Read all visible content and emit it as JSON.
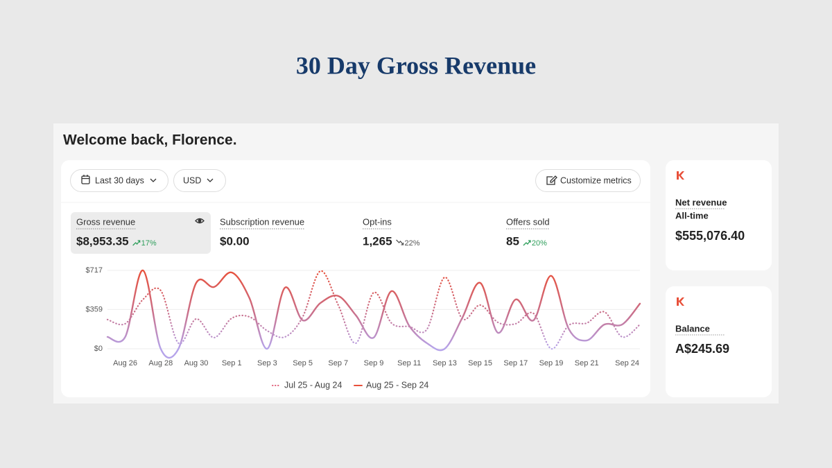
{
  "header": {
    "title": "30 Day Gross Revenue"
  },
  "greeting": "Welcome back, Florence.",
  "controls": {
    "date_range": "Last 30 days",
    "currency": "USD",
    "customize": "Customize metrics"
  },
  "metrics": [
    {
      "label": "Gross revenue",
      "value": "$8,953.35",
      "change": "17%",
      "trend": "up"
    },
    {
      "label": "Subscription revenue",
      "value": "$0.00"
    },
    {
      "label": "Opt-ins",
      "value": "1,265",
      "change": "22%",
      "trend": "down"
    },
    {
      "label": "Offers sold",
      "value": "85",
      "change": "20%",
      "trend": "up"
    }
  ],
  "chart_data": {
    "type": "line",
    "categories": [
      null,
      "Aug 26",
      null,
      "Aug 28",
      null,
      "Aug 30",
      null,
      "Sep 1",
      null,
      "Sep 3",
      null,
      "Sep 5",
      null,
      "Sep 7",
      null,
      "Sep 9",
      null,
      "Sep 11",
      null,
      "Sep 13",
      null,
      "Sep 15",
      null,
      "Sep 17",
      null,
      "Sep 19",
      null,
      "Sep 21",
      null,
      null,
      "Sep 24"
    ],
    "series": [
      {
        "name": "Jul 25 - Aug 24",
        "color": "#e0607a",
        "line_style": "dotted",
        "values": [
          267,
          229,
          451,
          533,
          51,
          273,
          102,
          279,
          292,
          165,
          108,
          292,
          711,
          400,
          51,
          514,
          235,
          203,
          178,
          654,
          273,
          400,
          241,
          229,
          324,
          0,
          216,
          235,
          337,
          108,
          222
        ]
      },
      {
        "name": "Aug 25 - Sep 24",
        "color": "#e8503a",
        "line_style": "solid",
        "values": [
          108,
          108,
          717,
          0,
          0,
          603,
          565,
          698,
          463,
          0,
          559,
          260,
          419,
          483,
          305,
          102,
          527,
          210,
          51,
          0,
          286,
          603,
          146,
          451,
          260,
          667,
          178,
          76,
          222,
          222,
          413
        ]
      }
    ],
    "ylim": [
      0,
      717
    ],
    "yticks": [
      {
        "value": 0,
        "label": "$0"
      },
      {
        "value": 359,
        "label": "$359"
      },
      {
        "value": 717,
        "label": "$717"
      }
    ],
    "grid": true
  },
  "side_cards": [
    {
      "label": "Net revenue",
      "sublabel": "All-time",
      "value": "$555,076.40"
    },
    {
      "label": "Balance",
      "value": "A$245.69"
    }
  ]
}
